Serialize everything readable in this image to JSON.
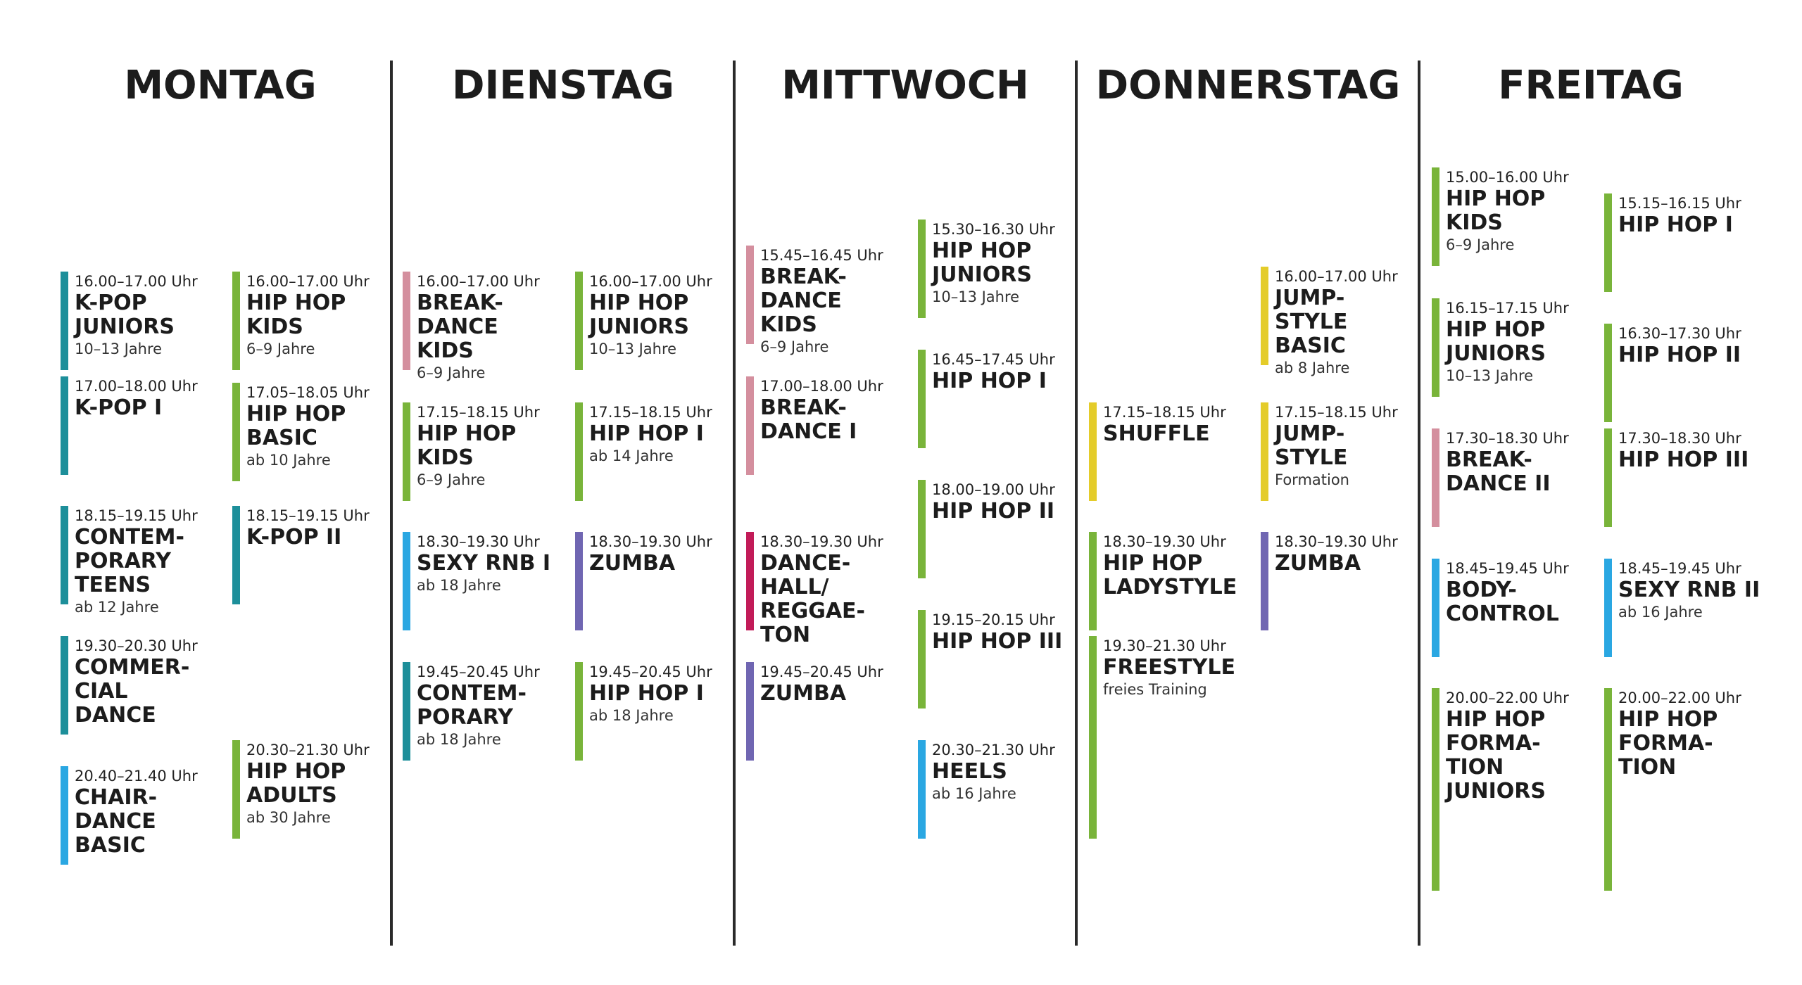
{
  "colors": {
    "teal": "#1d8f9a",
    "green": "#79b43a",
    "pink": "#d48f9e",
    "blue": "#2aa7e2",
    "purple": "#7066b2",
    "crimson": "#c21b58",
    "yellow": "#e4cc2a"
  },
  "days": [
    {
      "name": "MONTAG",
      "classes": [
        {
          "time": "16.00–17.00 Uhr",
          "name": "K-POP\nJUNIORS",
          "sub": "10–13 Jahre",
          "color": "teal"
        },
        {
          "time": "17.00–18.00 Uhr",
          "name": "K-POP I",
          "sub": "",
          "color": "teal"
        },
        {
          "time": "18.15–19.15 Uhr",
          "name": "CONTEM-\nPORARY\nTEENS",
          "sub": "ab 12 Jahre",
          "color": "teal"
        },
        {
          "time": "19.30–20.30 Uhr",
          "name": "COMMER-\nCIAL\nDANCE",
          "sub": "",
          "color": "teal"
        },
        {
          "time": "20.40–21.40 Uhr",
          "name": "CHAIR-\nDANCE\nBASIC",
          "sub": "",
          "color": "blue"
        },
        {
          "time": "16.00–17.00 Uhr",
          "name": "HIP HOP\nKIDS",
          "sub": "6–9 Jahre",
          "color": "green"
        },
        {
          "time": "17.05–18.05 Uhr",
          "name": "HIP HOP\nBASIC",
          "sub": "ab 10 Jahre",
          "color": "green"
        },
        {
          "time": "18.15–19.15 Uhr",
          "name": "K-POP II",
          "sub": "",
          "color": "teal"
        },
        {
          "time": "20.30–21.30 Uhr",
          "name": "HIP HOP\nADULTS",
          "sub": "ab 30 Jahre",
          "color": "green"
        }
      ]
    },
    {
      "name": "DIENSTAG",
      "classes": [
        {
          "time": "16.00–17.00 Uhr",
          "name": "BREAK-\nDANCE\nKIDS",
          "sub": "6–9 Jahre",
          "color": "pink"
        },
        {
          "time": "17.15–18.15 Uhr",
          "name": "HIP HOP\nKIDS",
          "sub": "6–9 Jahre",
          "color": "green"
        },
        {
          "time": "18.30–19.30 Uhr",
          "name": "SEXY RNB I",
          "sub": "ab 18 Jahre",
          "color": "blue"
        },
        {
          "time": "19.45–20.45 Uhr",
          "name": "CONTEM-\nPORARY",
          "sub": "ab 18 Jahre",
          "color": "teal"
        },
        {
          "time": "16.00–17.00 Uhr",
          "name": "HIP HOP\nJUNIORS",
          "sub": "10–13 Jahre",
          "color": "green"
        },
        {
          "time": "17.15–18.15 Uhr",
          "name": "HIP HOP I",
          "sub": "ab 14 Jahre",
          "color": "green"
        },
        {
          "time": "18.30–19.30 Uhr",
          "name": "ZUMBA",
          "sub": "",
          "color": "purple"
        },
        {
          "time": "19.45–20.45 Uhr",
          "name": "HIP HOP I",
          "sub": "ab 18 Jahre",
          "color": "green"
        }
      ]
    },
    {
      "name": "MITTWOCH",
      "classes": [
        {
          "time": "15.45–16.45 Uhr",
          "name": "BREAK-\nDANCE\nKIDS",
          "sub": "6–9 Jahre",
          "color": "pink"
        },
        {
          "time": "17.00–18.00 Uhr",
          "name": "BREAK-\nDANCE I",
          "sub": "",
          "color": "pink"
        },
        {
          "time": "18.30–19.30 Uhr",
          "name": "DANCE-\nHALL/\nREGGAE-\nTON",
          "sub": "",
          "color": "crimson"
        },
        {
          "time": "19.45–20.45 Uhr",
          "name": "ZUMBA",
          "sub": "",
          "color": "purple"
        },
        {
          "time": "15.30–16.30 Uhr",
          "name": "HIP HOP\nJUNIORS",
          "sub": "10–13 Jahre",
          "color": "green"
        },
        {
          "time": "16.45–17.45 Uhr",
          "name": "HIP HOP I",
          "sub": "",
          "color": "green"
        },
        {
          "time": "18.00–19.00 Uhr",
          "name": "HIP HOP II",
          "sub": "",
          "color": "green"
        },
        {
          "time": "19.15–20.15 Uhr",
          "name": "HIP HOP III",
          "sub": "",
          "color": "green"
        },
        {
          "time": "20.30–21.30 Uhr",
          "name": "HEELS",
          "sub": "ab 16 Jahre",
          "color": "blue"
        }
      ]
    },
    {
      "name": "DONNERSTAG",
      "classes": [
        {
          "time": "17.15–18.15 Uhr",
          "name": "SHUFFLE",
          "sub": "",
          "color": "yellow"
        },
        {
          "time": "18.30–19.30 Uhr",
          "name": "HIP HOP\nLADYSTYLE",
          "sub": "",
          "color": "green"
        },
        {
          "time": "19.30–21.30 Uhr",
          "name": "FREESTYLE",
          "sub": "freies Training",
          "color": "green"
        },
        {
          "time": "16.00–17.00 Uhr",
          "name": "JUMP-\nSTYLE\nBASIC",
          "sub": "ab 8 Jahre",
          "color": "yellow"
        },
        {
          "time": "17.15–18.15 Uhr",
          "name": "JUMP-\nSTYLE",
          "sub": "Formation",
          "color": "yellow"
        },
        {
          "time": "18.30–19.30 Uhr",
          "name": "ZUMBA",
          "sub": "",
          "color": "purple"
        }
      ]
    },
    {
      "name": "FREITAG",
      "classes": [
        {
          "time": "15.00–16.00 Uhr",
          "name": "HIP HOP\nKIDS",
          "sub": "6–9 Jahre",
          "color": "green"
        },
        {
          "time": "16.15–17.15 Uhr",
          "name": "HIP HOP\nJUNIORS",
          "sub": "10–13 Jahre",
          "color": "green"
        },
        {
          "time": "17.30–18.30 Uhr",
          "name": "BREAK-\nDANCE II",
          "sub": "",
          "color": "pink"
        },
        {
          "time": "18.45–19.45 Uhr",
          "name": "BODY-\nCONTROL",
          "sub": "",
          "color": "blue"
        },
        {
          "time": "20.00–22.00 Uhr",
          "name": "HIP HOP\nFORMA-\nTION\nJUNIORS",
          "sub": "",
          "color": "green"
        },
        {
          "time": "15.15–16.15 Uhr",
          "name": "HIP HOP I",
          "sub": "",
          "color": "green"
        },
        {
          "time": "16.30–17.30 Uhr",
          "name": "HIP HOP II",
          "sub": "",
          "color": "green"
        },
        {
          "time": "17.30–18.30 Uhr",
          "name": "HIP HOP III",
          "sub": "",
          "color": "green"
        },
        {
          "time": "18.45–19.45 Uhr",
          "name": "SEXY RNB II",
          "sub": "ab 16 Jahre",
          "color": "blue"
        },
        {
          "time": "20.00–22.00 Uhr",
          "name": "HIP HOP\nFORMA-\nTION",
          "sub": "",
          "color": "green"
        }
      ]
    }
  ]
}
